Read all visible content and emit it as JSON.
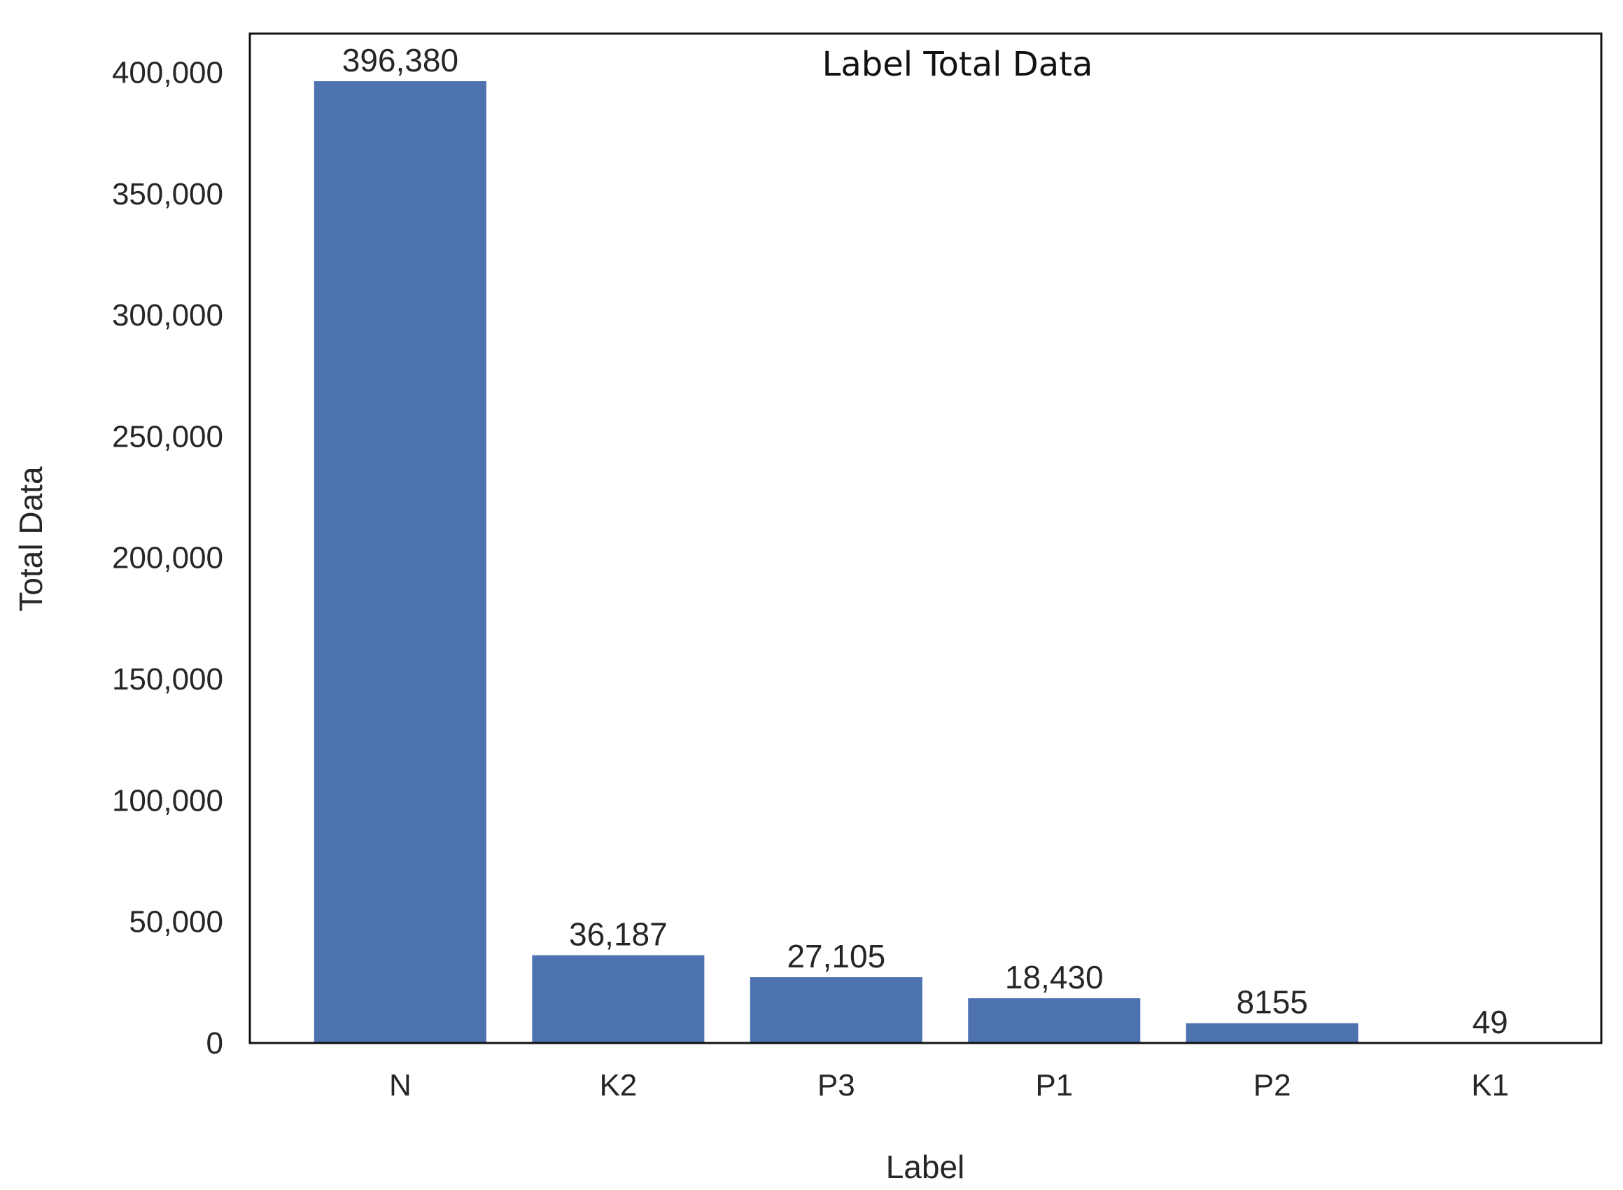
{
  "chart_data": {
    "type": "bar",
    "title": "Label Total Data",
    "xlabel": "Label",
    "ylabel": "Total Data",
    "categories": [
      "N",
      "K2",
      "P3",
      "P1",
      "P2",
      "K1"
    ],
    "values": [
      396380,
      36187,
      27105,
      18430,
      8155,
      49
    ],
    "value_labels": [
      "396,380",
      "36,187",
      "27,105",
      "18,430",
      "8155",
      "49"
    ],
    "ylim": [
      0,
      416000
    ],
    "yticks": [
      0,
      50000,
      100000,
      150000,
      200000,
      250000,
      300000,
      350000,
      400000
    ],
    "ytick_labels": [
      "0",
      "50,000",
      "100,000",
      "150,000",
      "200,000",
      "250,000",
      "300,000",
      "350,000",
      "400,000"
    ],
    "grid": false,
    "bar_color": "#4c72b0"
  }
}
